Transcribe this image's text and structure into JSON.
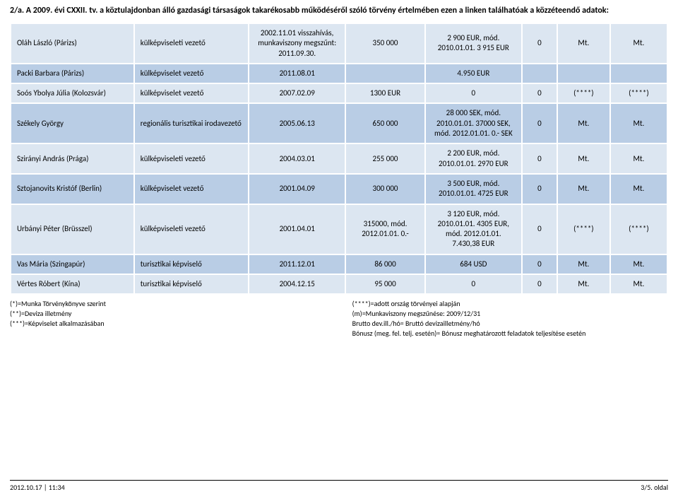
{
  "title": "2/a. A 2009. évi CXXII. tv. a köztulajdonban álló gazdasági társaságok takarékosabb működéséről szóló törvény értelmében ezen a linken találhatóak a közzéteendő adatok:",
  "colors": {
    "band_a": "#dce6f1",
    "band_b": "#b9cde5",
    "border": "#ffffff",
    "text": "#000000"
  },
  "rows": [
    {
      "band": "a",
      "name": "Oláh László (Párizs)",
      "role": "külképviseleti vezető",
      "date": "2002.11.01 visszahívás, munkaviszony megszűnt: 2011.09.30.",
      "amt": "350 000",
      "eur": "2 900 EUR, mód. 2010.01.01. 3 915 EUR",
      "z": "0",
      "m1": "Mt.",
      "m2": "Mt."
    },
    {
      "band": "b",
      "name": "Packi Barbara (Párizs)",
      "role": "külképviselet vezető",
      "date": "2011.08.01",
      "amt": "",
      "eur": "4.950 EUR",
      "z": "",
      "m1": "",
      "m2": ""
    },
    {
      "band": "a",
      "name": "Soós Ybolya Júlia (Kolozsvár)",
      "role": "külképviselet vezető",
      "date": "2007.02.09",
      "amt": "1300 EUR",
      "eur": "0",
      "z": "0",
      "m1": "(****)",
      "m2": "(****)"
    },
    {
      "band": "b",
      "name": "Székely György",
      "role": "regionális turisztikai irodavezető",
      "date": "2005.06.13",
      "amt": "650 000",
      "eur": "28 000 SEK, mód. 2010.01.01. 37000 SEK, mód. 2012.01.01. 0.- SEK",
      "z": "0",
      "m1": "Mt.",
      "m2": "Mt."
    },
    {
      "band": "a",
      "name": "Szirányi András (Prága)",
      "role": "külképviseleti vezető",
      "date": "2004.03.01",
      "amt": "255 000",
      "eur": "2 200 EUR, mód. 2010.01.01. 2970 EUR",
      "z": "0",
      "m1": "Mt.",
      "m2": "Mt."
    },
    {
      "band": "b",
      "name": "Sztojanovits Kristóf (Berlin)",
      "role": "külképviselet vezető",
      "date": "2001.04.09",
      "amt": "300 000",
      "eur": "3 500 EUR, mód. 2010.01.01. 4725 EUR",
      "z": "0",
      "m1": "Mt.",
      "m2": "Mt."
    },
    {
      "band": "a",
      "name": "Urbányi Péter (Brüsszel)",
      "role": "külképviseleti vezető",
      "date": "2001.04.01",
      "amt": "315000, mód. 2012.01.01. 0.-",
      "eur": "3 120 EUR, mód. 2010.01.01. 4305 EUR, mód. 2012.01.01. 7.430,38 EUR",
      "z": "0",
      "m1": "(****)",
      "m2": "(****)"
    },
    {
      "band": "b",
      "name": "Vas Mária (Szingapúr)",
      "role": "turisztikai képviselő",
      "date": "2011.12.01",
      "amt": "86 000",
      "eur": "684 USD",
      "z": "0",
      "m1": "Mt.",
      "m2": "Mt."
    },
    {
      "band": "a",
      "name": "Vértes Róbert (Kína)",
      "role": "turisztikai képviselő",
      "date": "2004.12.15",
      "amt": "95 000",
      "eur": "0",
      "z": "0",
      "m1": "Mt.",
      "m2": "Mt."
    }
  ],
  "legend_left": [
    "(*)=Munka Törvénykönyve szerint",
    "(**)=Deviza illetmény",
    "(***)=Képviselet alkalmazásában"
  ],
  "legend_right": [
    "(****)=adott ország törvényei alapján",
    "(m)=Munkaviszony megszűnése: 2009/12/31",
    "Brutto dev.ill./hó= Bruttó devizailletmény/hó",
    "Bónusz (meg. fel. telj. esetén)= Bónusz meghatározott feladatok teljesítése esetén"
  ],
  "footer": {
    "left": "2012.10.17 | 11:34",
    "right": "3/5. oldal"
  }
}
